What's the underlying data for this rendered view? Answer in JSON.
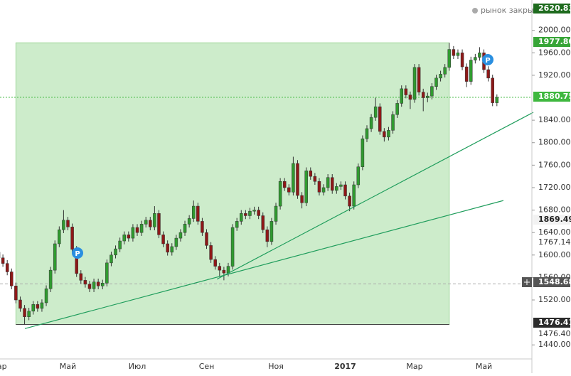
{
  "chart_data": {
    "type": "candlestick",
    "status": "рынок закрыт",
    "categories": [
      "Мар",
      null,
      null,
      null,
      null,
      null,
      null,
      null,
      null,
      null,
      null,
      null,
      null,
      null,
      null,
      null,
      "Май",
      null,
      null,
      null,
      null,
      null,
      null,
      null,
      null,
      null,
      null,
      null,
      null,
      null,
      null,
      null,
      "Июл",
      null,
      null,
      null,
      null,
      null,
      null,
      null,
      null,
      null,
      null,
      null,
      null,
      null,
      null,
      null,
      "Сен",
      null,
      null,
      null,
      null,
      null,
      null,
      null,
      null,
      null,
      null,
      null,
      null,
      null,
      null,
      null,
      "Ноя",
      null,
      null,
      null,
      null,
      null,
      null,
      null,
      null,
      null,
      null,
      null,
      null,
      null,
      null,
      null,
      "2017",
      null,
      null,
      null,
      null,
      null,
      null,
      null,
      null,
      null,
      null,
      null,
      null,
      null,
      null,
      null,
      "Мар",
      null,
      null,
      null,
      null,
      null,
      null,
      null,
      null,
      null,
      null,
      null,
      null,
      null,
      null,
      null,
      "Май",
      null,
      null,
      null
    ],
    "open": [
      1605,
      1595,
      1585,
      1570,
      1545,
      1520,
      1505,
      1490,
      1500,
      1512,
      1505,
      1515,
      1540,
      1573,
      1620,
      1645,
      1662,
      1650,
      1610,
      1567,
      1555,
      1548,
      1540,
      1552,
      1545,
      1550,
      1586,
      1600,
      1611,
      1625,
      1636,
      1630,
      1649,
      1640,
      1655,
      1662,
      1650,
      1674,
      1636,
      1620,
      1605,
      1615,
      1630,
      1640,
      1655,
      1665,
      1687,
      1660,
      1640,
      1617,
      1592,
      1580,
      1573,
      1568,
      1580,
      1649,
      1660,
      1674,
      1670,
      1678,
      1680,
      1670,
      1645,
      1624,
      1660,
      1687,
      1731,
      1720,
      1712,
      1763,
      1706,
      1693,
      1750,
      1740,
      1731,
      1712,
      1720,
      1738,
      1715,
      1722,
      1725,
      1705,
      1687,
      1725,
      1757,
      1807,
      1825,
      1845,
      1864,
      1820,
      1810,
      1822,
      1850,
      1870,
      1896,
      1885,
      1877,
      1934,
      1890,
      1880,
      1883,
      1900,
      1915,
      1922,
      1934,
      1966,
      1955,
      1960,
      1935,
      1909,
      1947,
      1952,
      1960,
      1930,
      1915,
      1871
    ],
    "high": [
      1611,
      1601,
      1591,
      1576,
      1551,
      1526,
      1511,
      1506,
      1518,
      1518,
      1521,
      1546,
      1579,
      1626,
      1651,
      1680,
      1668,
      1656,
      1616,
      1573,
      1561,
      1554,
      1558,
      1558,
      1556,
      1592,
      1606,
      1617,
      1631,
      1642,
      1642,
      1655,
      1655,
      1661,
      1668,
      1668,
      1687,
      1680,
      1642,
      1626,
      1621,
      1636,
      1646,
      1661,
      1671,
      1697,
      1693,
      1666,
      1646,
      1623,
      1598,
      1586,
      1579,
      1586,
      1655,
      1666,
      1680,
      1680,
      1684,
      1686,
      1686,
      1676,
      1651,
      1666,
      1693,
      1737,
      1737,
      1726,
      1775,
      1769,
      1712,
      1756,
      1756,
      1746,
      1737,
      1726,
      1744,
      1744,
      1728,
      1731,
      1731,
      1711,
      1731,
      1763,
      1813,
      1831,
      1851,
      1880,
      1870,
      1826,
      1828,
      1856,
      1876,
      1902,
      1902,
      1891,
      1940,
      1940,
      1896,
      1889,
      1906,
      1921,
      1928,
      1940,
      1977.8,
      1972,
      1966,
      1966,
      1941,
      1953,
      1958,
      1970,
      1966,
      1936,
      1921,
      1886
    ],
    "low": [
      1589,
      1579,
      1564,
      1539,
      1514,
      1499,
      1476.41,
      1484,
      1494,
      1499,
      1499,
      1509,
      1534,
      1567,
      1614,
      1639,
      1644,
      1604,
      1561,
      1549,
      1542,
      1534,
      1534,
      1539,
      1539,
      1544,
      1580,
      1594,
      1605,
      1619,
      1624,
      1624,
      1634,
      1634,
      1649,
      1644,
      1644,
      1630,
      1614,
      1599,
      1599,
      1609,
      1624,
      1634,
      1649,
      1659,
      1654,
      1634,
      1611,
      1586,
      1574,
      1562,
      1555,
      1562,
      1574,
      1643,
      1654,
      1664,
      1664,
      1672,
      1664,
      1639,
      1614,
      1618,
      1654,
      1681,
      1714,
      1706,
      1706,
      1700,
      1683,
      1687,
      1734,
      1725,
      1706,
      1706,
      1714,
      1709,
      1709,
      1716,
      1699,
      1678,
      1681,
      1719,
      1751,
      1801,
      1819,
      1839,
      1814,
      1802,
      1804,
      1816,
      1844,
      1864,
      1879,
      1860,
      1871,
      1884,
      1856,
      1872,
      1877,
      1894,
      1909,
      1916,
      1928,
      1949,
      1949,
      1929,
      1899,
      1903,
      1941,
      1946,
      1924,
      1909,
      1865,
      1865
    ],
    "close": [
      1595,
      1585,
      1570,
      1545,
      1520,
      1505,
      1490,
      1500,
      1512,
      1505,
      1515,
      1540,
      1573,
      1620,
      1645,
      1662,
      1650,
      1610,
      1567,
      1555,
      1548,
      1540,
      1552,
      1545,
      1550,
      1586,
      1600,
      1611,
      1625,
      1636,
      1630,
      1649,
      1640,
      1655,
      1662,
      1650,
      1674,
      1636,
      1620,
      1605,
      1615,
      1630,
      1640,
      1655,
      1665,
      1687,
      1660,
      1640,
      1617,
      1592,
      1580,
      1573,
      1568,
      1580,
      1649,
      1660,
      1674,
      1670,
      1678,
      1680,
      1670,
      1645,
      1624,
      1660,
      1687,
      1731,
      1720,
      1712,
      1763,
      1706,
      1693,
      1750,
      1740,
      1731,
      1712,
      1720,
      1738,
      1715,
      1722,
      1725,
      1705,
      1687,
      1725,
      1757,
      1807,
      1825,
      1845,
      1864,
      1820,
      1810,
      1822,
      1850,
      1870,
      1896,
      1885,
      1877,
      1934,
      1890,
      1880,
      1883,
      1900,
      1915,
      1922,
      1934,
      1966,
      1955,
      1960,
      1935,
      1909,
      1947,
      1952,
      1960,
      1930,
      1915,
      1871,
      1880.75
    ],
    "up_color": "#2f9a2f",
    "down_color": "#8e1818",
    "ylim": [
      1415,
      2054
    ],
    "yticks": [
      {
        "value": 2000,
        "label": "2000.00"
      },
      {
        "value": 1960,
        "label": "1960.00"
      },
      {
        "value": 1920,
        "label": "1920.00"
      },
      {
        "value": 1840,
        "label": "1840.00"
      },
      {
        "value": 1800,
        "label": "1800.00"
      },
      {
        "value": 1760,
        "label": "1760.00"
      },
      {
        "value": 1720,
        "label": "1720.00"
      },
      {
        "value": 1680,
        "label": "1680.00"
      },
      {
        "value": 1640,
        "label": "1640.00"
      },
      {
        "value": 1600,
        "label": "1600.00"
      },
      {
        "value": 1560,
        "label": "1560.00"
      },
      {
        "value": 1520,
        "label": "1520.00"
      },
      {
        "value": 1440,
        "label": "1440.00"
      }
    ],
    "range_box": {
      "from": 4,
      "to": 104,
      "top": 1977.8,
      "bottom": 1476.41
    },
    "trend_lines": [
      {
        "x": [
          6.07,
          116.5
        ],
        "y": [
          1469,
          1697
        ]
      },
      {
        "x": [
          50.4,
          123.4
        ],
        "y": [
          1557,
          1854
        ]
      }
    ],
    "last_price": 1880.75,
    "crosshair_price": 1548.68,
    "price_labels": [
      "2620.83",
      "1977.80",
      "1880.75",
      "1869.49",
      "1767.14",
      "1548.68",
      "1476.41",
      "1476.40"
    ],
    "markers": [
      "P",
      "P"
    ]
  }
}
